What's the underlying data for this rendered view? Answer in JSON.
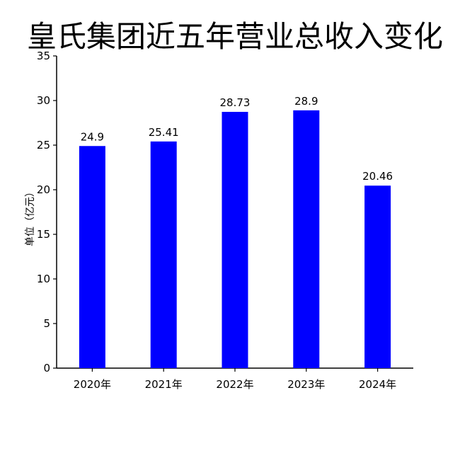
{
  "chart_data": {
    "type": "bar",
    "title": "皇氏集团近五年营业总收入变化",
    "ylabel": "单位（亿元）",
    "xlabel": "",
    "categories": [
      "2020年",
      "2021年",
      "2022年",
      "2023年",
      "2024年"
    ],
    "values": [
      24.9,
      25.41,
      28.73,
      28.9,
      20.46
    ],
    "data_labels": [
      "24.9",
      "25.41",
      "28.73",
      "28.9",
      "20.46"
    ],
    "ylim": [
      0,
      35
    ],
    "yticks": [
      "0",
      "5",
      "10",
      "15",
      "20",
      "25",
      "30",
      "35"
    ],
    "bar_color": "#0000ff",
    "grid": false,
    "legend": "none"
  }
}
